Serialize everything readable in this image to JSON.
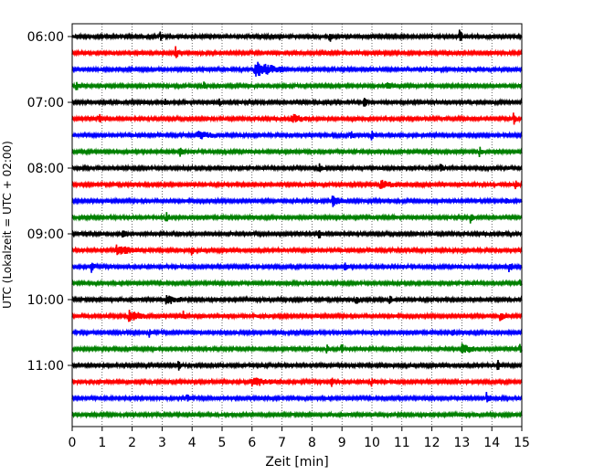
{
  "chart_data": {
    "type": "line",
    "title": "",
    "xlabel": "Zeit  [min]",
    "ylabel": "UTC (Lokalzeit = UTC + 02:00)",
    "xlim": [
      0,
      15
    ],
    "x_ticks": [
      "0",
      "1",
      "2",
      "3",
      "4",
      "5",
      "6",
      "7",
      "8",
      "9",
      "10",
      "11",
      "12",
      "13",
      "14",
      "15"
    ],
    "y_ticks": [
      {
        "label": "06:00",
        "trace_index": 0
      },
      {
        "label": "07:00",
        "trace_index": 4
      },
      {
        "label": "08:00",
        "trace_index": 8
      },
      {
        "label": "09:00",
        "trace_index": 12
      },
      {
        "label": "10:00",
        "trace_index": 16
      },
      {
        "label": "11:00",
        "trace_index": 20
      }
    ],
    "series_colors": [
      "#000000",
      "#ff0000",
      "#0000ff",
      "#008000"
    ],
    "traces_count": 24,
    "grid": "vertical-dotted",
    "events": [
      {
        "trace": 0,
        "t": 2.95,
        "amp": 1.2
      },
      {
        "trace": 0,
        "t": 8.6,
        "amp": 1.4
      },
      {
        "trace": 0,
        "t": 12.95,
        "amp": 1.5
      },
      {
        "trace": 1,
        "t": 3.45,
        "amp": 1.6
      },
      {
        "trace": 2,
        "t": 6.1,
        "amp": 2.0,
        "dur": 1.0
      },
      {
        "trace": 3,
        "t": 0.15,
        "amp": 1.4
      },
      {
        "trace": 3,
        "t": 4.4,
        "amp": 1.0
      },
      {
        "trace": 3,
        "t": 10.5,
        "amp": 1.2
      },
      {
        "trace": 4,
        "t": 3.1,
        "amp": 1.2
      },
      {
        "trace": 4,
        "t": 4.9,
        "amp": 1.1
      },
      {
        "trace": 4,
        "t": 9.75,
        "amp": 1.3
      },
      {
        "trace": 5,
        "t": 0.9,
        "amp": 1.4
      },
      {
        "trace": 5,
        "t": 7.3,
        "amp": 1.1,
        "dur": 0.6
      },
      {
        "trace": 5,
        "t": 14.75,
        "amp": 1.5
      },
      {
        "trace": 6,
        "t": 4.2,
        "amp": 1.0,
        "dur": 0.6
      },
      {
        "trace": 6,
        "t": 9.3,
        "amp": 1.0
      },
      {
        "trace": 6,
        "t": 10.0,
        "amp": 1.1
      },
      {
        "trace": 7,
        "t": 3.6,
        "amp": 1.1
      },
      {
        "trace": 7,
        "t": 13.6,
        "amp": 1.3
      },
      {
        "trace": 8,
        "t": 8.25,
        "amp": 1.2
      },
      {
        "trace": 8,
        "t": 12.3,
        "amp": 1.3
      },
      {
        "trace": 9,
        "t": 10.3,
        "amp": 1.2,
        "dur": 0.5
      },
      {
        "trace": 9,
        "t": 14.8,
        "amp": 1.3
      },
      {
        "trace": 10,
        "t": 8.7,
        "amp": 1.2,
        "dur": 0.5
      },
      {
        "trace": 10,
        "t": 14.5,
        "amp": 1.0
      },
      {
        "trace": 11,
        "t": 3.15,
        "amp": 1.3
      },
      {
        "trace": 11,
        "t": 13.3,
        "amp": 1.3
      },
      {
        "trace": 12,
        "t": 8.25,
        "amp": 1.3
      },
      {
        "trace": 12,
        "t": 1.7,
        "amp": 1.0
      },
      {
        "trace": 13,
        "t": 1.5,
        "amp": 1.2,
        "dur": 0.8
      },
      {
        "trace": 13,
        "t": 4.0,
        "amp": 1.0
      },
      {
        "trace": 14,
        "t": 0.65,
        "amp": 1.3
      },
      {
        "trace": 14,
        "t": 9.1,
        "amp": 1.0
      },
      {
        "trace": 14,
        "t": 14.6,
        "amp": 1.3
      },
      {
        "trace": 15,
        "t": 14.95,
        "amp": 1.3
      },
      {
        "trace": 16,
        "t": 3.15,
        "amp": 1.2,
        "dur": 0.5
      },
      {
        "trace": 16,
        "t": 9.5,
        "amp": 1.0
      },
      {
        "trace": 16,
        "t": 10.6,
        "amp": 1.3
      },
      {
        "trace": 17,
        "t": 1.9,
        "amp": 1.5,
        "dur": 0.6
      },
      {
        "trace": 17,
        "t": 3.7,
        "amp": 1.1
      },
      {
        "trace": 17,
        "t": 14.3,
        "amp": 1.3
      },
      {
        "trace": 18,
        "t": 2.6,
        "amp": 1.0
      },
      {
        "trace": 18,
        "t": 12.7,
        "amp": 1.0
      },
      {
        "trace": 19,
        "t": 8.5,
        "amp": 1.0
      },
      {
        "trace": 19,
        "t": 9.0,
        "amp": 1.3
      },
      {
        "trace": 19,
        "t": 13.0,
        "amp": 1.2,
        "dur": 0.6
      },
      {
        "trace": 19,
        "t": 14.95,
        "amp": 1.6
      },
      {
        "trace": 20,
        "t": 3.55,
        "amp": 1.2
      },
      {
        "trace": 20,
        "t": 14.2,
        "amp": 1.3
      },
      {
        "trace": 21,
        "t": 6.0,
        "amp": 1.1,
        "dur": 0.8
      },
      {
        "trace": 21,
        "t": 8.65,
        "amp": 1.1
      },
      {
        "trace": 21,
        "t": 10.0,
        "amp": 1.2
      },
      {
        "trace": 22,
        "t": 3.85,
        "amp": 1.2
      },
      {
        "trace": 22,
        "t": 13.85,
        "amp": 1.3
      }
    ]
  }
}
